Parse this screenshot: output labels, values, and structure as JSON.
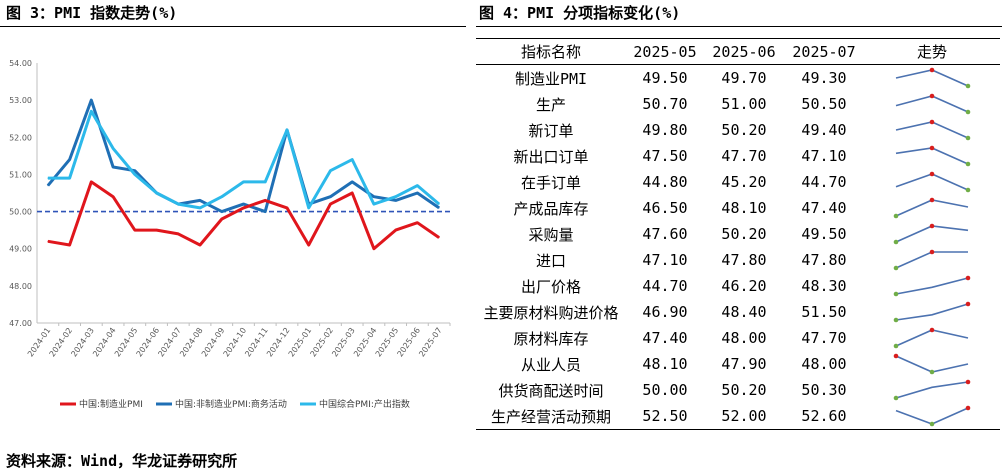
{
  "figure_left_title": "图 3：PMI 指数走势(%)",
  "figure_right_title": "图 4：PMI 分项指标变化(%)",
  "source_note": "资料来源：Wind，华龙证券研究所",
  "colors": {
    "manufacturing": "#e0161c",
    "non_manufacturing": "#1f6fb5",
    "composite": "#2cb9ea",
    "reference": "#2f54b8",
    "spark_line": "#4c72b0",
    "spark_high": "#d81e1e",
    "spark_low": "#70ad47"
  },
  "chart_data": [
    {
      "type": "line",
      "x": [
        "2024-01",
        "2024-02",
        "2024-03",
        "2024-04",
        "2024-05",
        "2024-06",
        "2024-07",
        "2024-08",
        "2024-09",
        "2024-10",
        "2024-11",
        "2024-12",
        "2025-01",
        "2025-02",
        "2025-03",
        "2025-04",
        "2025-05",
        "2025-06",
        "2025-07"
      ],
      "y_ticks": [
        "47.00",
        "48.00",
        "49.00",
        "50.00",
        "51.00",
        "52.00",
        "53.00",
        "54.00"
      ],
      "ylim": [
        47,
        54
      ],
      "reference_line": 50,
      "legend_position": "bottom",
      "series": [
        {
          "name": "中国:制造业PMI",
          "values": [
            49.2,
            49.1,
            50.8,
            50.4,
            49.5,
            49.5,
            49.4,
            49.1,
            49.8,
            50.1,
            50.3,
            50.1,
            49.1,
            50.2,
            50.5,
            49.0,
            49.5,
            49.7,
            49.3
          ]
        },
        {
          "name": "中国:非制造业PMI:商务活动",
          "values": [
            50.7,
            51.4,
            53.0,
            51.2,
            51.1,
            50.5,
            50.2,
            50.3,
            50.0,
            50.2,
            50.0,
            52.2,
            50.2,
            50.4,
            50.8,
            50.4,
            50.3,
            50.5,
            50.1
          ]
        },
        {
          "name": "中国综合PMI:产出指数",
          "values": [
            50.9,
            50.9,
            52.7,
            51.7,
            51.0,
            50.5,
            50.2,
            50.1,
            50.4,
            50.8,
            50.8,
            52.2,
            50.1,
            51.1,
            51.4,
            50.2,
            50.4,
            50.7,
            50.2
          ]
        }
      ]
    },
    {
      "type": "table",
      "columns": [
        "指标名称",
        "2025-05",
        "2025-06",
        "2025-07",
        "走势"
      ],
      "rows": [
        {
          "name": "制造业PMI",
          "values": [
            "49.50",
            "49.70",
            "49.30"
          ]
        },
        {
          "name": "生产",
          "values": [
            "50.70",
            "51.00",
            "50.50"
          ]
        },
        {
          "name": "新订单",
          "values": [
            "49.80",
            "50.20",
            "49.40"
          ]
        },
        {
          "name": "新出口订单",
          "values": [
            "47.50",
            "47.70",
            "47.10"
          ]
        },
        {
          "name": "在手订单",
          "values": [
            "44.80",
            "45.20",
            "44.70"
          ]
        },
        {
          "name": "产成品库存",
          "values": [
            "46.50",
            "48.10",
            "47.40"
          ]
        },
        {
          "name": "采购量",
          "values": [
            "47.60",
            "50.20",
            "49.50"
          ]
        },
        {
          "name": "进口",
          "values": [
            "47.10",
            "47.80",
            "47.80"
          ]
        },
        {
          "name": "出厂价格",
          "values": [
            "44.70",
            "46.20",
            "48.30"
          ]
        },
        {
          "name": "主要原材料购进价格",
          "values": [
            "46.90",
            "48.40",
            "51.50"
          ]
        },
        {
          "name": "原材料库存",
          "values": [
            "47.40",
            "48.00",
            "47.70"
          ]
        },
        {
          "name": "从业人员",
          "values": [
            "48.10",
            "47.90",
            "48.00"
          ]
        },
        {
          "name": "供货商配送时间",
          "values": [
            "50.00",
            "50.20",
            "50.30"
          ]
        },
        {
          "name": "生产经营活动预期",
          "values": [
            "52.50",
            "52.00",
            "52.60"
          ]
        }
      ]
    }
  ]
}
